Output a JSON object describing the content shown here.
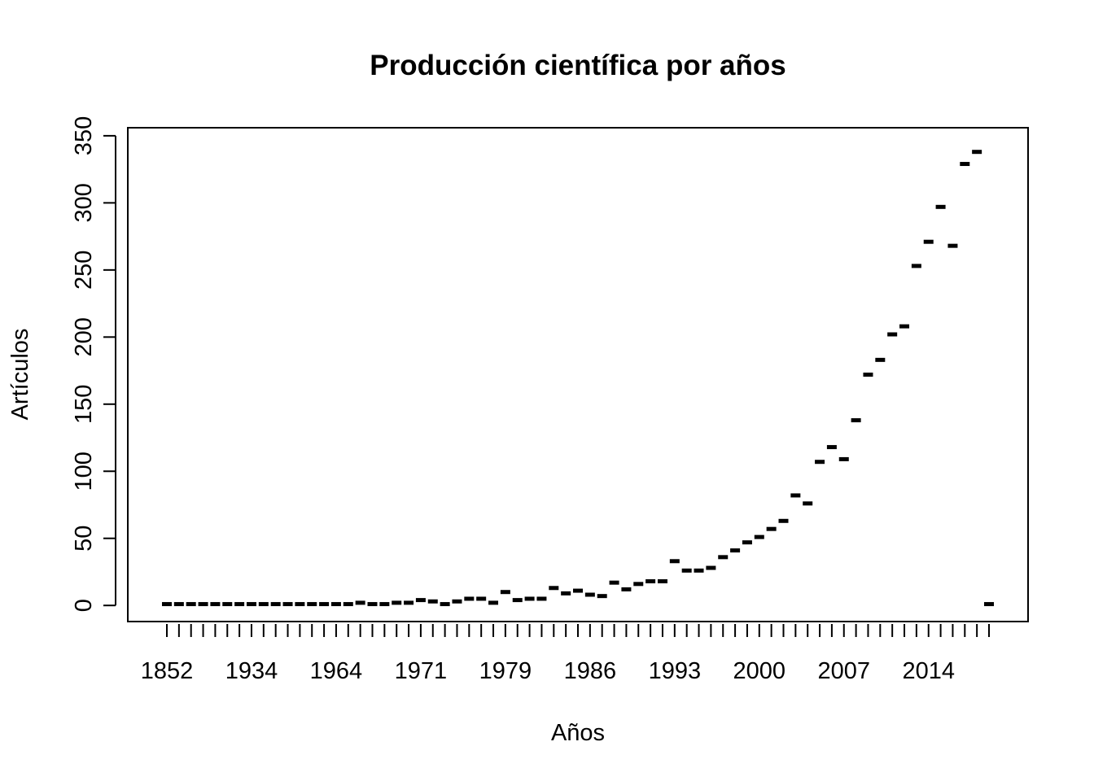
{
  "chart_data": {
    "type": "scatter",
    "title": "Producción científica por años",
    "xlabel": "Años",
    "ylabel": "Artículos",
    "ylim": [
      -12,
      356
    ],
    "y_ticks": [
      0,
      50,
      100,
      150,
      200,
      250,
      300,
      350
    ],
    "x_tick_labels": [
      "1852",
      "1934",
      "1964",
      "1971",
      "1979",
      "1986",
      "1993",
      "2000",
      "2007",
      "2014"
    ],
    "x_tick_label_every": 7,
    "grid": false,
    "legend": "none",
    "marker": "dash",
    "color": "#000000",
    "values": [
      1,
      1,
      1,
      1,
      1,
      1,
      1,
      1,
      1,
      1,
      1,
      1,
      1,
      1,
      1,
      1,
      2,
      1,
      1,
      2,
      2,
      4,
      3,
      1,
      3,
      5,
      5,
      2,
      10,
      4,
      5,
      5,
      13,
      9,
      11,
      8,
      7,
      17,
      12,
      16,
      18,
      18,
      33,
      26,
      26,
      28,
      36,
      41,
      47,
      51,
      57,
      63,
      82,
      76,
      107,
      118,
      109,
      138,
      172,
      183,
      202,
      208,
      253,
      271,
      297,
      268,
      329,
      338,
      1
    ]
  }
}
